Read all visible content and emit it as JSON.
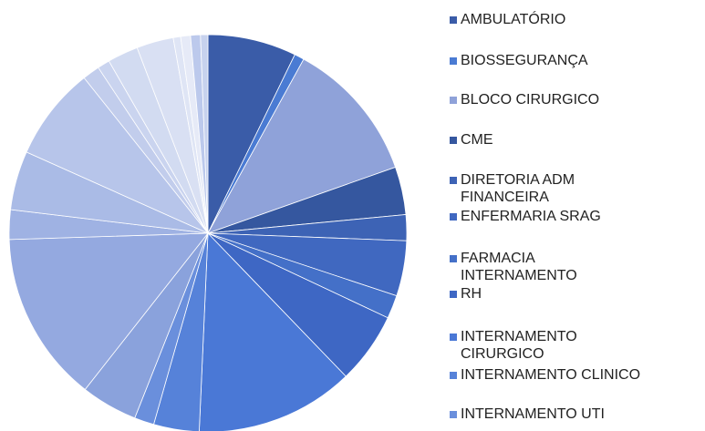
{
  "chart_data": {
    "type": "pie",
    "categories": [
      "AMBULATÓRIO",
      "BIOSSEGURANÇA",
      "BLOCO CIRURGICO",
      "CME",
      "DIRETORIA ADM FINANCEIRA",
      "ENFERMARIA SRAG",
      "FARMACIA INTERNAMENTO",
      "RH",
      "INTERNAMENTO CIRURGICO",
      "INTERNAMENTO CLINICO",
      "INTERNAMENTO UTI",
      null,
      null,
      null,
      null,
      null,
      null,
      null,
      null,
      null,
      null,
      null,
      null,
      null
    ],
    "values": [
      7.2,
      0.8,
      11.6,
      3.9,
      2.1,
      4.5,
      1.9,
      5.8,
      12.9,
      3.7,
      1.6,
      4.6,
      13.9,
      2.4,
      4.8,
      7.6,
      1.4,
      1.0,
      2.5,
      3.0,
      0.6,
      0.8,
      0.8,
      0.6
    ],
    "colors": [
      "#3a5ca8",
      "#4a7bd3",
      "#8fa2d9",
      "#35579f",
      "#3d63b5",
      "#4068c0",
      "#4470c8",
      "#3e67c4",
      "#4a78d6",
      "#5682d9",
      "#6a8fdc",
      "#8aa2dc",
      "#94a9e0",
      "#9fb2e3",
      "#aabbe6",
      "#b7c5ea",
      "#c2cdec",
      "#cad4ef",
      "#d2dbf1",
      "#d9e0f3",
      "#dfe5f5",
      "#e6eaf7",
      "#bcc9ec",
      "#c7d2ee"
    ]
  }
}
